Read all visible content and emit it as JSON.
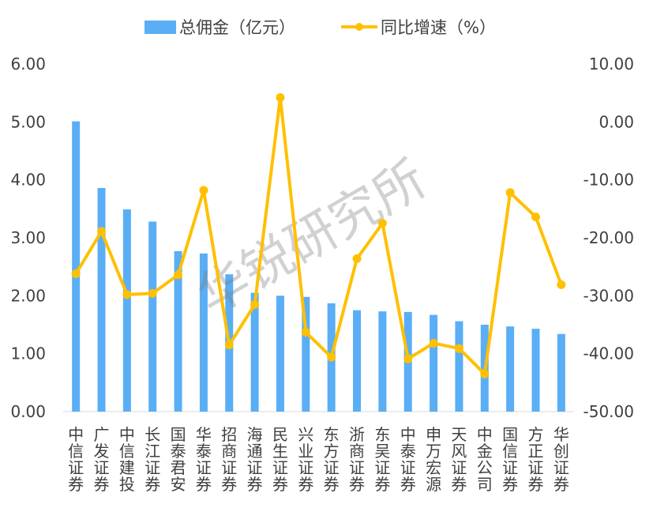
{
  "chart_data": {
    "type": "bar",
    "categories": [
      "中信证券",
      "广发证券",
      "中信建投",
      "长江证券",
      "国泰君安",
      "华泰证券",
      "招商证券",
      "海通证券",
      "民生证券",
      "兴业证券",
      "东方证券",
      "浙商证券",
      "东吴证券",
      "中泰证券",
      "申万宏源",
      "天风证券",
      "中金公司",
      "国信证券",
      "方正证券",
      "华创证券"
    ],
    "series": [
      {
        "name": "总佣金（亿元）",
        "type": "bar",
        "axis": "left",
        "color": "#5aaef5",
        "values": [
          5.01,
          3.86,
          3.49,
          3.28,
          2.77,
          2.73,
          2.37,
          2.05,
          2.0,
          1.98,
          1.87,
          1.75,
          1.73,
          1.72,
          1.67,
          1.56,
          1.5,
          1.47,
          1.43,
          1.34
        ]
      },
      {
        "name": "同比增速（%）",
        "type": "line",
        "axis": "right",
        "color": "#ffc000",
        "values": [
          -26.2,
          -18.9,
          -29.8,
          -29.6,
          -26.4,
          -11.8,
          -38.5,
          -31.5,
          4.2,
          -36.3,
          -40.6,
          -23.6,
          -17.5,
          -40.9,
          -38.2,
          -39.1,
          -43.5,
          -12.2,
          -16.4,
          -28.1
        ]
      }
    ],
    "y_left": {
      "ylim": [
        0,
        6
      ],
      "ticks": [
        "0.00",
        "1.00",
        "2.00",
        "3.00",
        "4.00",
        "5.00",
        "6.00"
      ]
    },
    "y_right": {
      "ylim": [
        -50,
        10
      ],
      "ticks": [
        "-50.00",
        "-40.00",
        "-30.00",
        "-20.00",
        "-10.00",
        "0.00",
        "10.00"
      ]
    },
    "legend_position": "top",
    "grid": false
  },
  "watermark": "华锐研究所"
}
